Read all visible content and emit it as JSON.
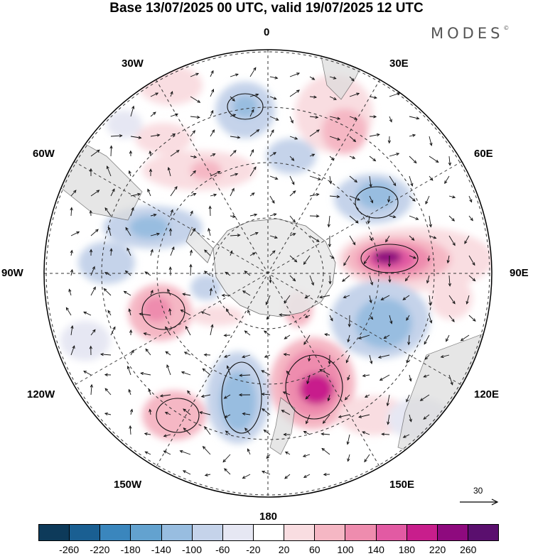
{
  "header": {
    "title": "Base 13/07/2025 00 UTC, valid 19/07/2025 12 UTC",
    "brand": "MODES"
  },
  "map": {
    "projection": "south polar stereographic",
    "longitude_labels": [
      "0",
      "30E",
      "60E",
      "90E",
      "120E",
      "150E",
      "180",
      "150W",
      "120W",
      "90W",
      "60W",
      "30W"
    ]
  },
  "legend": {
    "ticks": [
      "-260",
      "-220",
      "-180",
      "-140",
      "-100",
      "-60",
      "-20",
      "20",
      "60",
      "100",
      "140",
      "180",
      "220",
      "260"
    ],
    "colors": [
      "#0d3a5a",
      "#1a5f92",
      "#3a86bd",
      "#63a2cf",
      "#98bde0",
      "#c5d3ea",
      "#e6e7f3",
      "#ffffff",
      "#f9dde1",
      "#f5b7c4",
      "#ee8cae",
      "#e25aa3",
      "#c81e8c",
      "#8e0a7e",
      "#5a0f6e"
    ]
  },
  "reference_vector": {
    "label": "30"
  }
}
